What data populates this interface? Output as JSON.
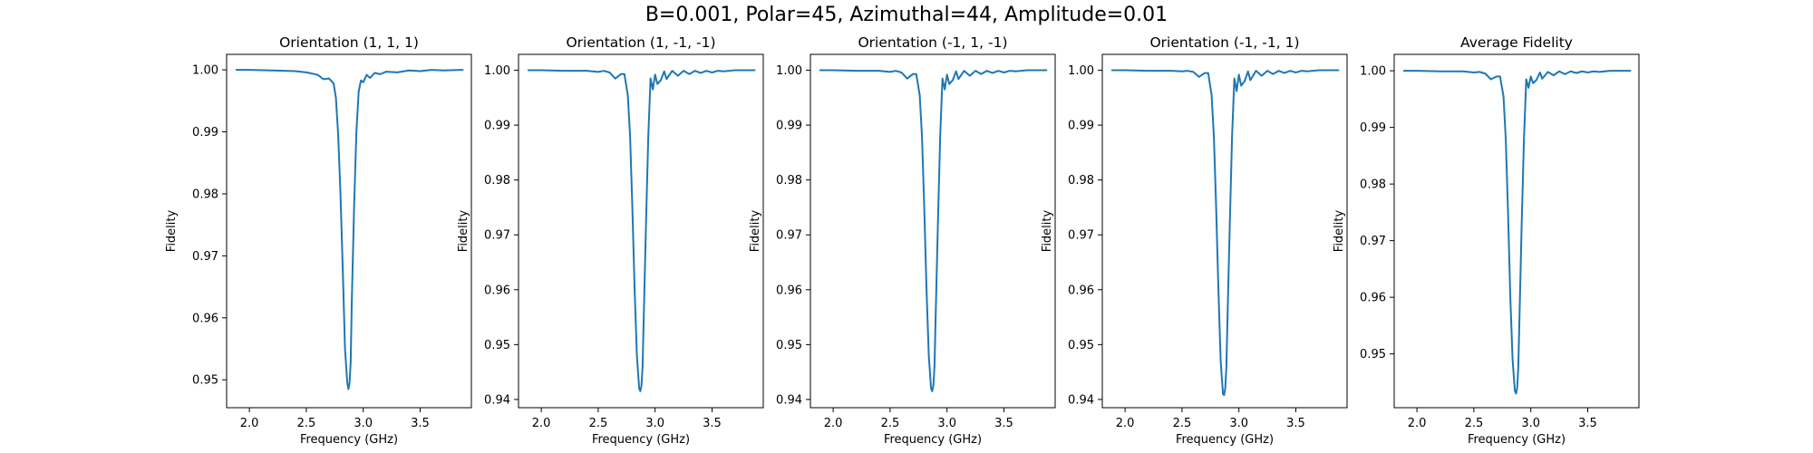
{
  "figure": {
    "suptitle": "B=0.001, Polar=45, Azimuthal=44, Amplitude=0.01"
  },
  "chart_data": [
    {
      "type": "line",
      "title": "Orientation (1, 1, 1)",
      "xlabel": "Frequency (GHz)",
      "ylabel": "Fidelity",
      "xlim": [
        1.8,
        3.95
      ],
      "ylim": [
        0.9455,
        1.0025
      ],
      "xticks": [
        2.0,
        2.5,
        3.0,
        3.5
      ],
      "yticks": [
        0.95,
        0.96,
        0.97,
        0.98,
        0.99,
        1.0
      ],
      "grid": false,
      "series": [
        {
          "color": "#1f77b4",
          "x": [
            1.88,
            2.0,
            2.2,
            2.4,
            2.5,
            2.6,
            2.65,
            2.7,
            2.74,
            2.76,
            2.78,
            2.8,
            2.82,
            2.84,
            2.86,
            2.87,
            2.88,
            2.89,
            2.9,
            2.92,
            2.94,
            2.96,
            2.98,
            3.0,
            3.03,
            3.06,
            3.1,
            3.15,
            3.2,
            3.3,
            3.4,
            3.5,
            3.6,
            3.7,
            3.88
          ],
          "y": [
            1.0,
            1.0,
            0.9999,
            0.9998,
            0.9996,
            0.9992,
            0.9985,
            0.9986,
            0.9978,
            0.9955,
            0.9895,
            0.98,
            0.968,
            0.955,
            0.9495,
            0.9485,
            0.9495,
            0.953,
            0.963,
            0.978,
            0.99,
            0.9965,
            0.9983,
            0.998,
            0.9992,
            0.9987,
            0.9995,
            0.9993,
            0.9997,
            0.9996,
            0.9999,
            0.9998,
            1.0,
            0.9999,
            1.0
          ]
        }
      ]
    },
    {
      "type": "line",
      "title": "Orientation (1, -1, -1)",
      "xlabel": "Frequency (GHz)",
      "ylabel": "Fidelity",
      "xlim": [
        1.8,
        3.95
      ],
      "ylim": [
        0.9385,
        1.0029
      ],
      "xticks": [
        2.0,
        2.5,
        3.0,
        3.5
      ],
      "yticks": [
        0.94,
        0.95,
        0.96,
        0.97,
        0.98,
        0.99,
        1.0
      ],
      "grid": false,
      "series": [
        {
          "color": "#1f77b4",
          "x": [
            1.88,
            2.0,
            2.2,
            2.4,
            2.5,
            2.55,
            2.6,
            2.65,
            2.7,
            2.73,
            2.76,
            2.78,
            2.8,
            2.82,
            2.84,
            2.86,
            2.87,
            2.88,
            2.89,
            2.9,
            2.92,
            2.94,
            2.96,
            2.98,
            3.0,
            3.02,
            3.05,
            3.08,
            3.1,
            3.15,
            3.2,
            3.25,
            3.3,
            3.35,
            3.4,
            3.45,
            3.5,
            3.55,
            3.6,
            3.7,
            3.88
          ],
          "y": [
            1.0,
            1.0,
            0.9999,
            0.9999,
            0.9997,
            0.9999,
            0.9996,
            0.9985,
            0.9993,
            0.9993,
            0.9955,
            0.988,
            0.975,
            0.96,
            0.948,
            0.942,
            0.9415,
            0.9425,
            0.946,
            0.955,
            0.972,
            0.988,
            0.9985,
            0.9965,
            0.9992,
            0.9975,
            0.9982,
            0.9998,
            0.9984,
            0.9999,
            0.999,
            0.9999,
            0.9993,
            0.9999,
            0.9995,
            0.9999,
            0.9996,
            0.9999,
            0.9998,
            1.0,
            1.0
          ]
        }
      ]
    },
    {
      "type": "line",
      "title": "Orientation (-1, 1, -1)",
      "xlabel": "Frequency (GHz)",
      "ylabel": "Fidelity",
      "xlim": [
        1.8,
        3.95
      ],
      "ylim": [
        0.9385,
        1.0029
      ],
      "xticks": [
        2.0,
        2.5,
        3.0,
        3.5
      ],
      "yticks": [
        0.94,
        0.95,
        0.96,
        0.97,
        0.98,
        0.99,
        1.0
      ],
      "grid": false,
      "series": [
        {
          "color": "#1f77b4",
          "x": [
            1.88,
            2.0,
            2.2,
            2.4,
            2.5,
            2.55,
            2.6,
            2.65,
            2.7,
            2.73,
            2.76,
            2.78,
            2.8,
            2.82,
            2.84,
            2.86,
            2.87,
            2.88,
            2.89,
            2.9,
            2.92,
            2.94,
            2.96,
            2.98,
            3.0,
            3.02,
            3.05,
            3.08,
            3.1,
            3.15,
            3.2,
            3.25,
            3.3,
            3.35,
            3.4,
            3.45,
            3.5,
            3.55,
            3.6,
            3.7,
            3.88
          ],
          "y": [
            1.0,
            1.0,
            0.9999,
            0.9999,
            0.9997,
            0.9999,
            0.9996,
            0.9985,
            0.9993,
            0.9993,
            0.9955,
            0.988,
            0.975,
            0.96,
            0.948,
            0.942,
            0.9415,
            0.9425,
            0.946,
            0.955,
            0.972,
            0.988,
            0.9985,
            0.9965,
            0.9992,
            0.9975,
            0.9982,
            0.9998,
            0.9984,
            0.9999,
            0.999,
            0.9999,
            0.9993,
            0.9999,
            0.9995,
            0.9999,
            0.9996,
            0.9999,
            0.9998,
            1.0,
            1.0
          ]
        }
      ]
    },
    {
      "type": "line",
      "title": "Orientation (-1, -1, 1)",
      "xlabel": "Frequency (GHz)",
      "ylabel": "Fidelity",
      "xlim": [
        1.8,
        3.95
      ],
      "ylim": [
        0.9385,
        1.0029
      ],
      "xticks": [
        2.0,
        2.5,
        3.0,
        3.5
      ],
      "yticks": [
        0.94,
        0.95,
        0.96,
        0.97,
        0.98,
        0.99,
        1.0
      ],
      "grid": false,
      "series": [
        {
          "color": "#1f77b4",
          "x": [
            1.88,
            2.0,
            2.2,
            2.4,
            2.5,
            2.55,
            2.6,
            2.65,
            2.7,
            2.73,
            2.76,
            2.78,
            2.8,
            2.82,
            2.84,
            2.86,
            2.87,
            2.88,
            2.89,
            2.9,
            2.92,
            2.94,
            2.96,
            2.98,
            3.0,
            3.02,
            3.05,
            3.08,
            3.1,
            3.15,
            3.2,
            3.25,
            3.3,
            3.35,
            3.4,
            3.45,
            3.5,
            3.55,
            3.6,
            3.7,
            3.88
          ],
          "y": [
            1.0,
            1.0,
            0.9999,
            0.9999,
            0.9998,
            0.9999,
            0.9997,
            0.9988,
            0.9995,
            0.9995,
            0.9955,
            0.988,
            0.975,
            0.96,
            0.947,
            0.941,
            0.9408,
            0.942,
            0.946,
            0.955,
            0.972,
            0.988,
            0.9985,
            0.9962,
            0.9992,
            0.9972,
            0.998,
            0.9998,
            0.9982,
            0.9999,
            0.999,
            0.9999,
            0.9993,
            0.9999,
            0.9995,
            0.9999,
            0.9996,
            0.9999,
            0.9998,
            1.0,
            1.0
          ]
        }
      ]
    },
    {
      "type": "line",
      "title": "Average Fidelity",
      "xlabel": "Frequency (GHz)",
      "ylabel": "Fidelity",
      "xlim": [
        1.8,
        3.95
      ],
      "ylim": [
        0.9405,
        1.0029
      ],
      "xticks": [
        2.0,
        2.5,
        3.0,
        3.5
      ],
      "yticks": [
        0.95,
        0.96,
        0.97,
        0.98,
        0.99,
        1.0
      ],
      "grid": false,
      "series": [
        {
          "color": "#1f77b4",
          "x": [
            1.88,
            2.0,
            2.2,
            2.4,
            2.5,
            2.55,
            2.6,
            2.65,
            2.7,
            2.73,
            2.76,
            2.78,
            2.8,
            2.82,
            2.84,
            2.86,
            2.87,
            2.88,
            2.89,
            2.9,
            2.92,
            2.94,
            2.96,
            2.98,
            3.0,
            3.02,
            3.05,
            3.08,
            3.1,
            3.15,
            3.2,
            3.25,
            3.3,
            3.35,
            3.4,
            3.45,
            3.5,
            3.55,
            3.6,
            3.7,
            3.88
          ],
          "y": [
            1.0,
            1.0,
            0.9999,
            0.9999,
            0.9997,
            0.9998,
            0.9995,
            0.9985,
            0.999,
            0.999,
            0.9955,
            0.988,
            0.975,
            0.96,
            0.949,
            0.9435,
            0.943,
            0.944,
            0.9475,
            0.956,
            0.973,
            0.988,
            0.9985,
            0.997,
            0.999,
            0.9978,
            0.9984,
            0.9997,
            0.9986,
            0.9998,
            0.9992,
            0.9999,
            0.9994,
            0.9999,
            0.9996,
            0.9999,
            0.9997,
            0.9999,
            0.9998,
            1.0,
            1.0
          ]
        }
      ]
    }
  ]
}
